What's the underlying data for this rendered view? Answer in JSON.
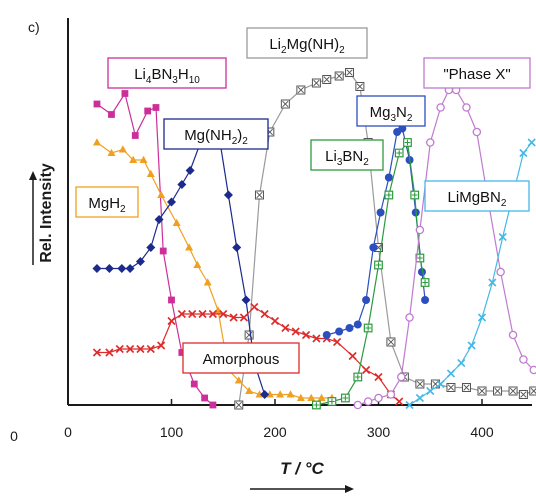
{
  "panel_label": "c)",
  "colors": {
    "LiMgNH": "#9a9a9a",
    "Li4BN3H10": "#cc2f9a",
    "MgH2": "#f0a020",
    "MgNH22": "#1c2a8c",
    "Amorphous": "#dd2b2b",
    "Mg3N2": "#2c4fbf",
    "Li3BN2": "#2c9a3e",
    "PhaseX": "#c07ad0",
    "LiMgBN2": "#45b8e6",
    "axis": "#1a1a1a"
  },
  "chart_data": {
    "type": "line",
    "xlabel": "T / °C",
    "ylabel": "Rel. Intensity",
    "xlim": [
      0,
      450
    ],
    "ylim": [
      0,
      100
    ],
    "x_ticks": [
      0,
      100,
      200,
      300,
      400
    ],
    "x_tick_labels": [
      "0",
      "100",
      "200",
      "300",
      "400"
    ],
    "extra_label": "0",
    "grid": false,
    "legend": "inline labels",
    "series": [
      {
        "name": "Li2Mg(NH)2",
        "label_pre": "Li",
        "label_sub1": "2",
        "label_mid": "Mg(NH)",
        "label_sub2": "2",
        "label_post": "",
        "color_key": "LiMgNH",
        "marker": "xsquare",
        "points": [
          [
            165,
            0
          ],
          [
            175,
            20
          ],
          [
            185,
            60
          ],
          [
            195,
            78
          ],
          [
            210,
            86
          ],
          [
            225,
            90
          ],
          [
            240,
            92
          ],
          [
            250,
            93
          ],
          [
            262,
            94
          ],
          [
            272,
            95
          ],
          [
            282,
            91
          ],
          [
            290,
            75
          ],
          [
            300,
            45
          ],
          [
            312,
            18
          ],
          [
            325,
            8
          ],
          [
            340,
            6
          ],
          [
            355,
            6
          ],
          [
            370,
            5
          ],
          [
            385,
            5
          ],
          [
            400,
            4
          ],
          [
            415,
            4
          ],
          [
            430,
            4
          ],
          [
            440,
            3
          ],
          [
            450,
            4
          ]
        ]
      },
      {
        "name": "Li4BN3H10",
        "label_pre": "Li",
        "label_sub1": "4",
        "label_mid": "BN",
        "label_sub2": "3",
        "label_post": "H",
        "label_sub3": "10",
        "color_key": "Li4BN3H10",
        "marker": "square",
        "points": [
          [
            28,
            86
          ],
          [
            42,
            83
          ],
          [
            55,
            89
          ],
          [
            65,
            77
          ],
          [
            77,
            84
          ],
          [
            85,
            85
          ],
          [
            92,
            44
          ],
          [
            100,
            30
          ],
          [
            110,
            15
          ],
          [
            122,
            6
          ],
          [
            132,
            2
          ],
          [
            140,
            0
          ]
        ]
      },
      {
        "name": "MgH2",
        "label_pre": "MgH",
        "label_sub1": "2",
        "label_mid": "",
        "label_sub2": "",
        "label_post": "",
        "color_key": "MgH2",
        "marker": "triangle",
        "points": [
          [
            28,
            75
          ],
          [
            42,
            72
          ],
          [
            53,
            73
          ],
          [
            63,
            70
          ],
          [
            73,
            70
          ],
          [
            80,
            66
          ],
          [
            90,
            60
          ],
          [
            105,
            52
          ],
          [
            117,
            45
          ],
          [
            125,
            40
          ],
          [
            135,
            35
          ],
          [
            145,
            27
          ],
          [
            155,
            10
          ],
          [
            165,
            7
          ],
          [
            175,
            4
          ],
          [
            185,
            3
          ],
          [
            195,
            3
          ],
          [
            205,
            3
          ],
          [
            215,
            3
          ],
          [
            225,
            2
          ],
          [
            235,
            2
          ],
          [
            245,
            2
          ],
          [
            255,
            2
          ]
        ]
      },
      {
        "name": "Mg(NH2)2",
        "label_pre": "Mg(NH",
        "label_sub1": "2",
        "label_mid": ")",
        "label_sub2": "2",
        "label_post": "",
        "color_key": "MgNH22",
        "marker": "diamond",
        "points": [
          [
            28,
            39
          ],
          [
            40,
            39
          ],
          [
            52,
            39
          ],
          [
            60,
            39
          ],
          [
            70,
            41
          ],
          [
            80,
            45
          ],
          [
            88,
            53
          ],
          [
            100,
            58
          ],
          [
            110,
            63
          ],
          [
            118,
            67
          ],
          [
            128,
            75
          ],
          [
            138,
            75
          ],
          [
            147,
            75
          ],
          [
            155,
            60
          ],
          [
            163,
            45
          ],
          [
            172,
            30
          ],
          [
            180,
            12
          ],
          [
            190,
            3
          ]
        ]
      },
      {
        "name": "Amorphous",
        "label_pre": "Amorphous",
        "label_sub1": "",
        "label_mid": "",
        "label_sub2": "",
        "label_post": "",
        "color_key": "Amorphous",
        "marker": "x",
        "points": [
          [
            28,
            15
          ],
          [
            40,
            15
          ],
          [
            50,
            16
          ],
          [
            60,
            16
          ],
          [
            70,
            16
          ],
          [
            80,
            16
          ],
          [
            90,
            17
          ],
          [
            100,
            24
          ],
          [
            110,
            26
          ],
          [
            120,
            26
          ],
          [
            130,
            26
          ],
          [
            140,
            26
          ],
          [
            150,
            26
          ],
          [
            160,
            25
          ],
          [
            170,
            25
          ],
          [
            180,
            28
          ],
          [
            190,
            26
          ],
          [
            200,
            24
          ],
          [
            210,
            22
          ],
          [
            220,
            21
          ],
          [
            230,
            20
          ],
          [
            240,
            19
          ],
          [
            250,
            19
          ],
          [
            260,
            18
          ],
          [
            275,
            14
          ],
          [
            288,
            10
          ],
          [
            300,
            8
          ],
          [
            312,
            3
          ],
          [
            320,
            1
          ]
        ]
      },
      {
        "name": "Mg3N2",
        "label_pre": "Mg",
        "label_sub1": "3",
        "label_mid": "N",
        "label_sub2": "2",
        "label_post": "",
        "color_key": "Mg3N2",
        "marker": "circle",
        "points": [
          [
            250,
            20
          ],
          [
            262,
            21
          ],
          [
            272,
            22
          ],
          [
            280,
            23
          ],
          [
            288,
            30
          ],
          [
            295,
            45
          ],
          [
            302,
            55
          ],
          [
            310,
            65
          ],
          [
            318,
            78
          ],
          [
            323,
            79
          ],
          [
            330,
            70
          ],
          [
            336,
            55
          ],
          [
            342,
            38
          ],
          [
            345,
            30
          ]
        ]
      },
      {
        "name": "Li3BN2",
        "label_pre": "Li",
        "label_sub1": "3",
        "label_mid": "BN",
        "label_sub2": "2",
        "label_post": "",
        "color_key": "Li3BN2",
        "marker": "plussquare",
        "points": [
          [
            240,
            0
          ],
          [
            255,
            1
          ],
          [
            268,
            2
          ],
          [
            280,
            8
          ],
          [
            290,
            22
          ],
          [
            300,
            40
          ],
          [
            310,
            60
          ],
          [
            320,
            72
          ],
          [
            328,
            75
          ],
          [
            335,
            60
          ],
          [
            340,
            42
          ],
          [
            345,
            35
          ]
        ]
      },
      {
        "name": "\"Phase X\"",
        "label_pre": "\"Phase X\"",
        "label_sub1": "",
        "label_mid": "",
        "label_sub2": "",
        "label_post": "",
        "color_key": "PhaseX",
        "marker": "ocircle",
        "points": [
          [
            280,
            0
          ],
          [
            290,
            1
          ],
          [
            300,
            2
          ],
          [
            312,
            3
          ],
          [
            322,
            8
          ],
          [
            330,
            25
          ],
          [
            340,
            50
          ],
          [
            350,
            75
          ],
          [
            360,
            85
          ],
          [
            368,
            90
          ],
          [
            375,
            90
          ],
          [
            385,
            85
          ],
          [
            395,
            78
          ],
          [
            405,
            60
          ],
          [
            418,
            38
          ],
          [
            430,
            20
          ],
          [
            440,
            13
          ],
          [
            450,
            10
          ]
        ]
      },
      {
        "name": "LiMgBN2",
        "label_pre": "LiMgBN",
        "label_sub1": "2",
        "label_mid": "",
        "label_sub2": "",
        "label_post": "",
        "color_key": "LiMgBN2",
        "marker": "x",
        "points": [
          [
            330,
            0
          ],
          [
            340,
            2
          ],
          [
            350,
            4
          ],
          [
            360,
            6
          ],
          [
            370,
            9
          ],
          [
            380,
            12
          ],
          [
            390,
            17
          ],
          [
            400,
            25
          ],
          [
            410,
            35
          ],
          [
            420,
            48
          ],
          [
            430,
            60
          ],
          [
            440,
            72
          ],
          [
            448,
            75
          ]
        ]
      }
    ]
  },
  "series_labels": [
    {
      "series": "Li4BN3H10",
      "color_key": "Li4BN3H10"
    },
    {
      "series": "Li2Mg(NH)2",
      "color_key": "LiMgNH"
    },
    {
      "series": "\"Phase X\"",
      "color_key": "PhaseX"
    },
    {
      "series": "Mg(NH2)2",
      "color_key": "MgNH22"
    },
    {
      "series": "Mg3N2",
      "color_key": "Mg3N2"
    },
    {
      "series": "Li3BN2",
      "color_key": "Li3BN2"
    },
    {
      "series": "MgH2",
      "color_key": "MgH2"
    },
    {
      "series": "LiMgBN2",
      "color_key": "LiMgBN2"
    },
    {
      "series": "Amorphous",
      "color_key": "Amorphous"
    }
  ]
}
